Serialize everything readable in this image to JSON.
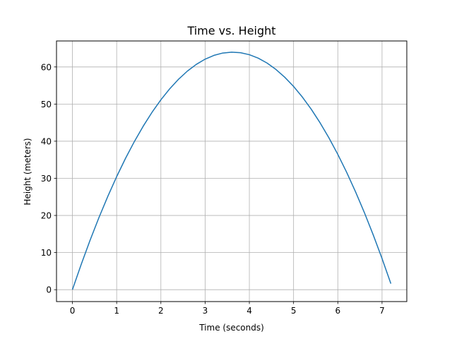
{
  "chart_data": {
    "type": "line",
    "title": "Time vs. Height",
    "xlabel": "Time (seconds)",
    "ylabel": "Height (meters)",
    "xlim": [
      -0.36,
      7.56
    ],
    "ylim": [
      -3.2,
      67.0
    ],
    "x_ticks": [
      0,
      1,
      2,
      3,
      4,
      5,
      6,
      7
    ],
    "y_ticks": [
      0,
      10,
      20,
      30,
      40,
      50,
      60
    ],
    "grid": true,
    "series": [
      {
        "color": "#1f77b4",
        "x": [
          0,
          0.2,
          0.4,
          0.6,
          0.8,
          1.0,
          1.2,
          1.4,
          1.6,
          1.8,
          2.0,
          2.2,
          2.4,
          2.6,
          2.8,
          3.0,
          3.2,
          3.4,
          3.6,
          3.8,
          4.0,
          4.2,
          4.4,
          4.6,
          4.8,
          5.0,
          5.2,
          5.4,
          5.6,
          5.8,
          6.0,
          6.2,
          6.4,
          6.6,
          6.8,
          7.0,
          7.2
        ],
        "y": [
          0,
          6.87,
          13.35,
          19.44,
          25.14,
          30.45,
          35.37,
          39.9,
          44.04,
          47.79,
          51.15,
          54.12,
          56.7,
          58.89,
          60.69,
          62.1,
          63.12,
          63.75,
          63.99,
          63.84,
          63.3,
          62.37,
          61.05,
          59.34,
          57.24,
          54.75,
          51.87,
          48.6,
          44.94,
          40.89,
          36.45,
          31.62,
          26.4,
          20.79,
          14.79,
          8.4,
          1.62
        ]
      }
    ]
  }
}
